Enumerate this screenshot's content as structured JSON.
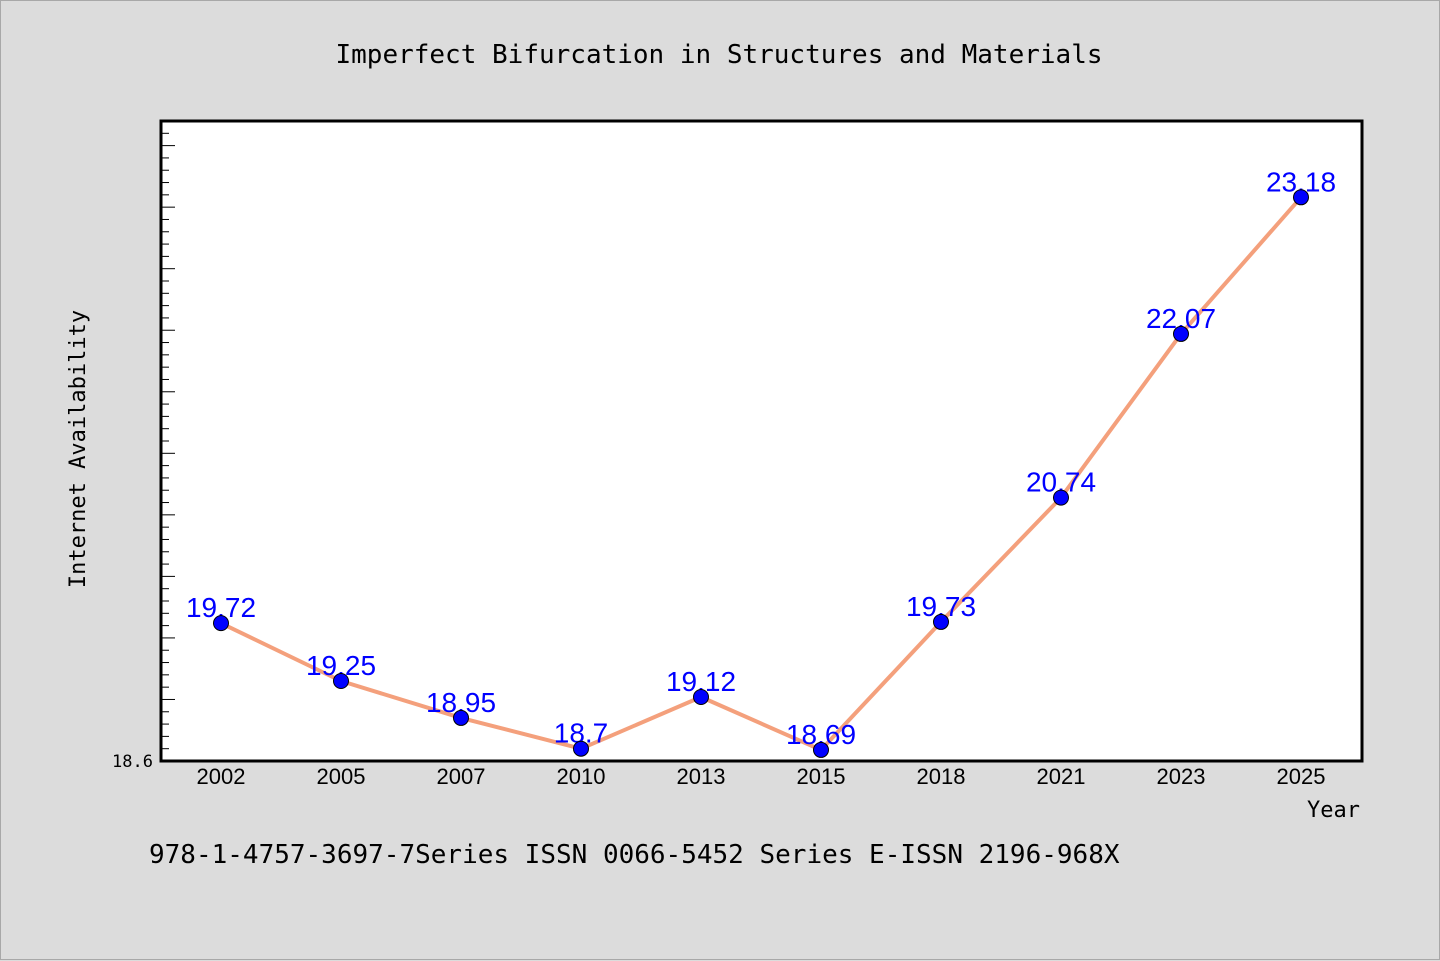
{
  "chart_data": {
    "type": "line",
    "title": "Imperfect Bifurcation in Structures and Materials",
    "xlabel": "Year",
    "ylabel": "Internet Availability",
    "categories": [
      "2002",
      "2005",
      "2007",
      "2010",
      "2013",
      "2015",
      "2018",
      "2021",
      "2023",
      "2025"
    ],
    "series": [
      {
        "values": [
          19.72,
          19.25,
          18.95,
          18.7,
          19.12,
          18.69,
          19.73,
          20.74,
          22.07,
          23.18
        ],
        "data_labels": [
          "19.72",
          "19.25",
          "18.95",
          "18.7",
          "19.12",
          "18.69",
          "19.73",
          "20.74",
          "22.07",
          "23.18"
        ]
      }
    ],
    "ylim": [
      18.6,
      23.8
    ],
    "y_tick_label": "18.6",
    "grid": false,
    "legend": "none",
    "colors": {
      "line": "#f4a07c",
      "marker": "#0000ff",
      "data_label": "#0000ff",
      "plot_background": "#ffffff",
      "figure_background": "#dcdcdc"
    }
  },
  "footer": {
    "text": "978-1-4757-3697-7Series ISSN 0066-5452 Series E-ISSN 2196-968X"
  }
}
